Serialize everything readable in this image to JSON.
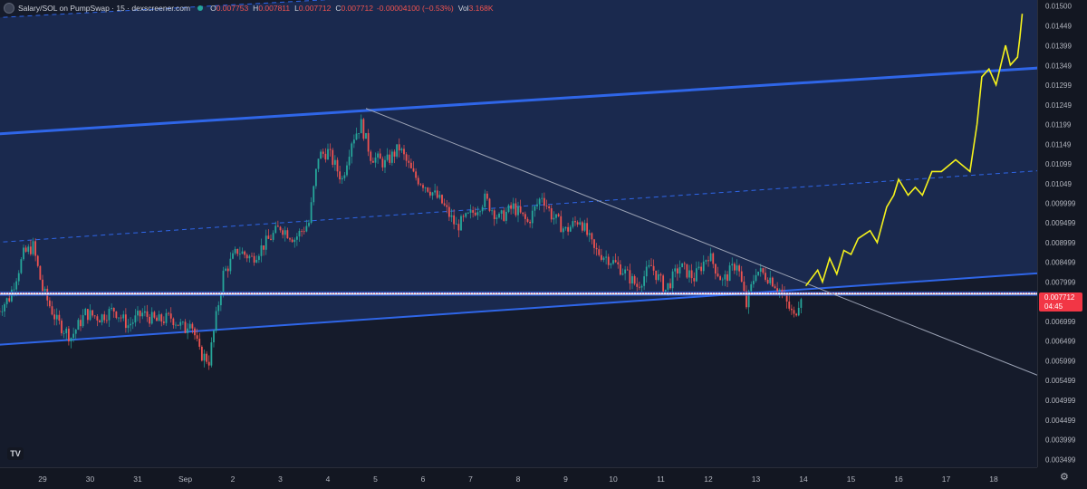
{
  "header": {
    "symbol_title": "Salary/SOL on PumpSwap · 15 · dexscreener.com",
    "open_label": "O",
    "open_value": "0.007753",
    "high_label": "H",
    "high_value": "0.007811",
    "low_label": "L",
    "low_value": "0.007712",
    "close_label": "C",
    "close_value": "0.007712",
    "change_value": "-0.00004100 (−0.53%)",
    "vol_label": "Vol",
    "vol_value": "3.168K"
  },
  "last_price": {
    "price": "0.007712",
    "countdown": "04:45"
  },
  "logo_text": "TV",
  "settings_icon": "gear-icon",
  "colors": {
    "background": "#131722",
    "channel_fill": "#1b2b55",
    "channel_line": "#2f66e8",
    "support_line": "#ffffff",
    "projection": "#f5f21c",
    "trendline": "#9ca3b5",
    "candle_up": "#26a69a",
    "candle_down": "#ef5350",
    "last_price_bg": "#f23645"
  },
  "chart_data": {
    "type": "candlestick",
    "x_tick_labels": [
      "29",
      "30",
      "31",
      "Sep",
      "2",
      "3",
      "4",
      "5",
      "6",
      "7",
      "8",
      "9",
      "10",
      "11",
      "12",
      "13",
      "14",
      "15",
      "16",
      "17",
      "18"
    ],
    "y_tick_labels": [
      "0.01500",
      "0.01449",
      "0.01399",
      "0.01349",
      "0.01299",
      "0.01249",
      "0.01199",
      "0.01149",
      "0.01099",
      "0.01049",
      "0.009999",
      "0.009499",
      "0.008999",
      "0.008499",
      "0.007999",
      "0.007499",
      "0.006999",
      "0.006499",
      "0.005999",
      "0.005499",
      "0.004999",
      "0.004499",
      "0.003999",
      "0.003499"
    ],
    "ylim": [
      0.0033,
      0.01515
    ],
    "price_path_days": [
      [
        28.0,
        0.0072
      ],
      [
        28.3,
        0.0076
      ],
      [
        28.6,
        0.0087
      ],
      [
        28.8,
        0.0089
      ],
      [
        29.0,
        0.0078
      ],
      [
        29.3,
        0.007
      ],
      [
        29.6,
        0.0066
      ],
      [
        29.9,
        0.0072
      ],
      [
        30.2,
        0.0071
      ],
      [
        30.5,
        0.0073
      ],
      [
        30.8,
        0.0069
      ],
      [
        31.1,
        0.0072
      ],
      [
        31.4,
        0.007
      ],
      [
        31.7,
        0.0071
      ],
      [
        32.0,
        0.0068
      ],
      [
        32.1,
        0.0071
      ],
      [
        32.3,
        0.0062
      ],
      [
        32.5,
        0.006
      ],
      [
        32.8,
        0.0082
      ],
      [
        33.1,
        0.0088
      ],
      [
        33.4,
        0.0086
      ],
      [
        33.7,
        0.009
      ],
      [
        34.0,
        0.0094
      ],
      [
        34.3,
        0.0091
      ],
      [
        34.6,
        0.0095
      ],
      [
        34.8,
        0.0112
      ],
      [
        35.0,
        0.0113
      ],
      [
        35.3,
        0.0106
      ],
      [
        35.5,
        0.0116
      ],
      [
        35.7,
        0.012
      ],
      [
        35.9,
        0.0112
      ],
      [
        36.2,
        0.011
      ],
      [
        36.5,
        0.0114
      ],
      [
        36.8,
        0.0107
      ],
      [
        37.1,
        0.0104
      ],
      [
        37.4,
        0.01
      ],
      [
        37.7,
        0.0094
      ],
      [
        38.0,
        0.0097
      ],
      [
        38.3,
        0.0101
      ],
      [
        38.6,
        0.0096
      ],
      [
        38.9,
        0.0099
      ],
      [
        39.2,
        0.0095
      ],
      [
        39.5,
        0.0102
      ],
      [
        39.7,
        0.0097
      ],
      [
        40.0,
        0.0093
      ],
      [
        40.3,
        0.0096
      ],
      [
        40.6,
        0.0088
      ],
      [
        40.9,
        0.0086
      ],
      [
        41.2,
        0.0083
      ],
      [
        41.5,
        0.0079
      ],
      [
        41.8,
        0.0084
      ],
      [
        42.1,
        0.0078
      ],
      [
        42.4,
        0.0084
      ],
      [
        42.7,
        0.0081
      ],
      [
        43.0,
        0.0087
      ],
      [
        43.3,
        0.008
      ],
      [
        43.6,
        0.0085
      ],
      [
        43.8,
        0.0074
      ],
      [
        44.0,
        0.0083
      ],
      [
        44.3,
        0.0081
      ],
      [
        44.5,
        0.0078
      ],
      [
        44.8,
        0.0071
      ],
      [
        44.95,
        0.0077
      ]
    ],
    "projection_path_days": [
      [
        45.05,
        0.0079
      ],
      [
        45.3,
        0.0083
      ],
      [
        45.4,
        0.008
      ],
      [
        45.55,
        0.0086
      ],
      [
        45.7,
        0.0082
      ],
      [
        45.85,
        0.0088
      ],
      [
        46.0,
        0.0087
      ],
      [
        46.15,
        0.0091
      ],
      [
        46.4,
        0.0093
      ],
      [
        46.55,
        0.009
      ],
      [
        46.75,
        0.0099
      ],
      [
        46.9,
        0.0102
      ],
      [
        47.0,
        0.0106
      ],
      [
        47.2,
        0.0102
      ],
      [
        47.35,
        0.0104
      ],
      [
        47.5,
        0.0102
      ],
      [
        47.7,
        0.0108
      ],
      [
        47.9,
        0.0108
      ],
      [
        48.2,
        0.0111
      ],
      [
        48.5,
        0.0108
      ],
      [
        48.65,
        0.012
      ],
      [
        48.75,
        0.0132
      ],
      [
        48.9,
        0.0134
      ],
      [
        49.05,
        0.013
      ],
      [
        49.25,
        0.014
      ],
      [
        49.35,
        0.0135
      ],
      [
        49.5,
        0.0137
      ],
      [
        49.55,
        0.0142
      ],
      [
        49.6,
        0.0148
      ]
    ],
    "trendline_days": [
      [
        35.8,
        0.0124
      ],
      [
        50.2,
        0.0055
      ]
    ],
    "support_price": 0.0077,
    "channel_upper_days": [
      [
        28.0,
        0.01175
      ],
      [
        50.9,
        0.0135
      ]
    ],
    "channel_lower_days": [
      [
        28.0,
        0.0064
      ],
      [
        50.9,
        0.0083
      ]
    ],
    "channel_mid_days": [
      [
        28.0,
        0.009
      ],
      [
        50.9,
        0.0109
      ]
    ],
    "channel_top_dashed_days": [
      [
        28.0,
        0.0147
      ],
      [
        50.9,
        0.0162
      ]
    ]
  }
}
